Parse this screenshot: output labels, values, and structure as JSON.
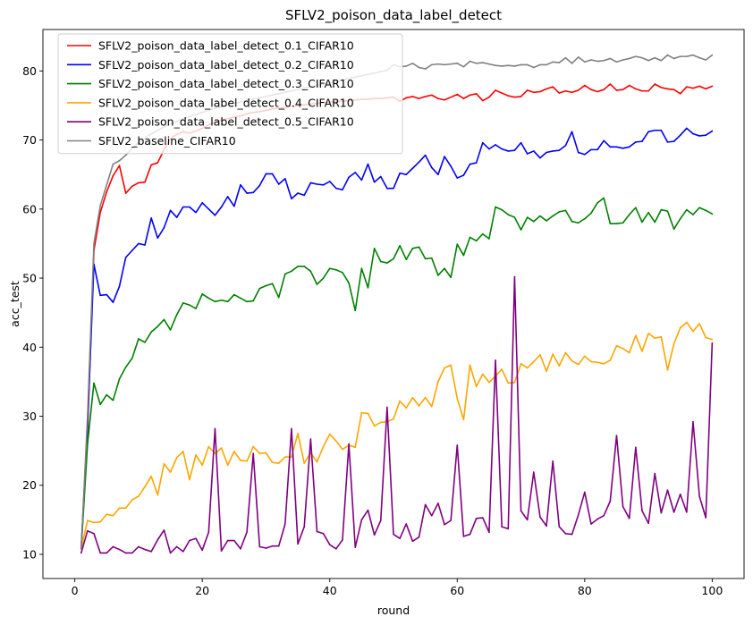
{
  "chart_data": {
    "type": "line",
    "title": "SFLV2_poison_data_label_detect",
    "xlabel": "round",
    "ylabel": "acc_test",
    "xlim": [
      -5,
      105
    ],
    "ylim": [
      6.5,
      86
    ],
    "xticks": [
      0,
      20,
      40,
      60,
      80,
      100
    ],
    "yticks": [
      10,
      20,
      30,
      40,
      50,
      60,
      70,
      80
    ],
    "grid": false,
    "legend_position": "top-left",
    "x": [
      1,
      2,
      3,
      4,
      5,
      6,
      7,
      8,
      9,
      10,
      11,
      12,
      13,
      14,
      15,
      16,
      17,
      18,
      19,
      20,
      21,
      22,
      23,
      24,
      25,
      26,
      27,
      28,
      29,
      30,
      31,
      32,
      33,
      34,
      35,
      36,
      37,
      38,
      39,
      40,
      41,
      42,
      43,
      44,
      45,
      46,
      47,
      48,
      49,
      50,
      51,
      52,
      53,
      54,
      55,
      56,
      57,
      58,
      59,
      60,
      61,
      62,
      63,
      64,
      65,
      66,
      67,
      68,
      69,
      70,
      71,
      72,
      73,
      74,
      75,
      76,
      77,
      78,
      79,
      80,
      81,
      82,
      83,
      84,
      85,
      86,
      87,
      88,
      89,
      90,
      91,
      92,
      93,
      94,
      95,
      96,
      97,
      98,
      99,
      100
    ],
    "series": [
      {
        "name": "SFLV2_poison_data_label_detect_0.1_CIFAR10",
        "color": "#ff0000",
        "values": [
          10.8,
          27.5,
          54.0,
          59.5,
          62.5,
          64.8,
          66.3,
          62.3,
          63.3,
          63.8,
          63.9,
          66.4,
          66.7,
          68.6,
          70.2,
          70.8,
          71.2,
          71.0,
          71.3,
          71.7,
          72.2,
          72.6,
          72.9,
          73.1,
          73.3,
          73.5,
          73.8,
          74.0,
          74.1,
          74.3,
          74.5,
          74.6,
          74.7,
          74.9,
          75.0,
          75.1,
          75.2,
          75.3,
          75.4,
          75.5,
          75.6,
          75.6,
          75.7,
          75.8,
          75.9,
          75.9,
          76.0,
          76.0,
          76.1,
          76.2,
          75.6,
          76.1,
          76.3,
          76.0,
          76.3,
          76.5,
          76.0,
          75.8,
          76.2,
          76.6,
          76.0,
          76.5,
          76.7,
          75.7,
          76.2,
          77.2,
          76.8,
          76.4,
          76.2,
          76.3,
          77.2,
          76.9,
          77.0,
          77.4,
          77.7,
          76.8,
          77.1,
          76.9,
          77.2,
          77.9,
          77.3,
          77.0,
          77.3,
          78.1,
          77.2,
          77.3,
          77.9,
          77.4,
          77.1,
          77.1,
          78.1,
          77.6,
          77.4,
          77.3,
          76.7,
          77.7,
          77.5,
          77.8,
          77.4,
          77.8
        ]
      },
      {
        "name": "SFLV2_poison_data_label_detect_0.2_CIFAR10",
        "color": "#0000ff",
        "values": [
          10.8,
          28.5,
          52.0,
          47.5,
          47.6,
          46.5,
          48.8,
          53.0,
          54.0,
          55.0,
          54.8,
          58.7,
          55.8,
          57.3,
          59.8,
          58.8,
          60.3,
          60.3,
          59.5,
          60.9,
          60.0,
          59.1,
          60.3,
          61.8,
          60.4,
          63.5,
          62.3,
          62.4,
          63.4,
          65.1,
          65.1,
          63.6,
          64.4,
          61.5,
          62.3,
          62.0,
          63.8,
          63.6,
          63.5,
          64.0,
          63.0,
          62.8,
          64.6,
          65.3,
          64.2,
          66.5,
          63.9,
          64.7,
          63.0,
          63.0,
          65.2,
          65.0,
          65.9,
          66.8,
          67.8,
          66.0,
          65.0,
          67.6,
          66.2,
          64.5,
          64.9,
          66.5,
          66.7,
          69.6,
          68.7,
          69.3,
          68.7,
          68.4,
          68.5,
          69.6,
          68.0,
          68.4,
          67.4,
          68.2,
          68.4,
          68.5,
          69.2,
          71.2,
          68.2,
          67.9,
          68.6,
          68.6,
          69.9,
          69.0,
          69.0,
          68.8,
          69.0,
          69.7,
          69.8,
          71.2,
          71.4,
          71.4,
          69.7,
          69.8,
          70.7,
          71.7,
          70.9,
          70.6,
          70.7,
          71.3
        ]
      },
      {
        "name": "SFLV2_poison_data_label_detect_0.3_CIFAR10",
        "color": "#008000",
        "values": [
          10.8,
          26.0,
          34.8,
          31.7,
          33.1,
          32.3,
          35.4,
          37.1,
          38.4,
          41.2,
          40.7,
          42.2,
          43.0,
          44.0,
          42.5,
          44.7,
          46.4,
          46.1,
          45.6,
          47.7,
          47.1,
          46.6,
          46.8,
          46.6,
          47.6,
          47.1,
          46.6,
          46.7,
          48.5,
          48.9,
          49.2,
          47.2,
          50.6,
          51.0,
          51.7,
          51.7,
          51.0,
          49.1,
          50.0,
          51.4,
          51.2,
          50.8,
          49.3,
          45.3,
          51.4,
          48.6,
          54.3,
          52.4,
          52.2,
          52.8,
          54.7,
          52.7,
          54.3,
          54.5,
          52.8,
          52.9,
          50.4,
          51.4,
          50.1,
          54.9,
          53.3,
          55.9,
          55.4,
          56.4,
          55.7,
          60.3,
          59.9,
          59.2,
          58.8,
          57.0,
          58.8,
          58.2,
          59.0,
          58.3,
          59.0,
          59.6,
          59.8,
          58.2,
          58.0,
          58.6,
          59.4,
          60.9,
          61.6,
          57.9,
          57.9,
          58.0,
          59.2,
          60.2,
          58.1,
          59.5,
          58.1,
          59.9,
          59.7,
          57.1,
          58.6,
          59.9,
          59.2,
          60.2,
          59.8,
          59.3
        ]
      },
      {
        "name": "SFLV2_poison_data_label_detect_0.4_CIFAR10",
        "color": "#ffa500",
        "values": [
          10.8,
          14.9,
          14.6,
          14.7,
          15.8,
          15.6,
          16.7,
          16.7,
          17.9,
          18.4,
          19.8,
          21.3,
          18.6,
          23.1,
          21.9,
          24.0,
          24.9,
          20.8,
          24.4,
          22.9,
          25.6,
          24.6,
          25.4,
          22.9,
          24.9,
          23.6,
          23.5,
          25.6,
          24.6,
          24.7,
          23.3,
          23.2,
          24.1,
          24.1,
          27.5,
          23.2,
          24.7,
          23.4,
          25.6,
          27.4,
          26.4,
          25.2,
          25.8,
          25.5,
          30.5,
          30.4,
          28.6,
          29.1,
          29.2,
          29.6,
          32.2,
          31.2,
          32.7,
          31.5,
          32.7,
          31.4,
          35.0,
          37.0,
          37.4,
          32.6,
          29.5,
          37.4,
          34.3,
          36.1,
          34.9,
          35.8,
          36.8,
          34.8,
          34.9,
          37.6,
          37.0,
          37.9,
          38.9,
          36.5,
          39.0,
          37.3,
          39.2,
          38.0,
          37.5,
          38.7,
          37.9,
          37.8,
          37.6,
          38.1,
          40.2,
          39.8,
          39.2,
          41.7,
          39.4,
          42.0,
          41.3,
          41.5,
          36.7,
          40.5,
          42.8,
          43.6,
          42.3,
          43.4,
          41.4,
          41.1
        ]
      },
      {
        "name": "SFLV2_poison_data_label_detect_0.5_CIFAR10",
        "color": "#800080",
        "values": [
          10.2,
          13.4,
          13.0,
          10.2,
          10.2,
          11.1,
          10.7,
          10.2,
          10.2,
          11.1,
          10.7,
          10.4,
          12.1,
          13.5,
          10.2,
          11.1,
          10.4,
          12.0,
          12.3,
          10.6,
          13.2,
          28.2,
          10.5,
          12.0,
          12.0,
          10.8,
          13.2,
          24.6,
          11.1,
          10.9,
          11.2,
          11.2,
          14.4,
          28.2,
          11.5,
          14.0,
          26.7,
          13.3,
          13.0,
          11.4,
          10.8,
          12.1,
          26.0,
          11.0,
          15.0,
          16.4,
          12.8,
          14.9,
          31.3,
          12.9,
          12.3,
          14.4,
          11.9,
          12.5,
          17.2,
          15.6,
          17.4,
          14.3,
          14.9,
          25.8,
          12.6,
          12.9,
          15.2,
          15.3,
          13.2,
          38.1,
          14.0,
          13.7,
          50.2,
          16.3,
          15.0,
          21.9,
          15.4,
          14.1,
          23.5,
          14.0,
          13.0,
          12.9,
          15.7,
          19.0,
          14.4,
          15.1,
          15.6,
          17.7,
          27.2,
          16.9,
          15.2,
          25.5,
          16.3,
          14.5,
          21.7,
          16.0,
          19.3,
          16.1,
          18.7,
          16.1,
          29.2,
          18.4,
          15.3,
          40.6
        ]
      },
      {
        "name": "SFLV2_baseline_CIFAR10",
        "color": "#808080",
        "values": [
          10.8,
          30.0,
          55.0,
          60.5,
          63.5,
          66.5,
          67.0,
          67.8,
          68.8,
          69.6,
          70.3,
          70.9,
          71.4,
          71.9,
          72.3,
          72.7,
          73.1,
          73.4,
          73.7,
          74.0,
          74.3,
          74.6,
          74.8,
          75.1,
          75.3,
          75.5,
          75.7,
          75.9,
          76.1,
          76.3,
          76.5,
          76.7,
          76.9,
          77.1,
          77.3,
          77.5,
          77.7,
          77.9,
          78.1,
          78.3,
          78.5,
          78.7,
          78.9,
          79.1,
          79.3,
          79.5,
          79.7,
          79.9,
          80.1,
          80.9,
          80.6,
          80.7,
          81.1,
          80.5,
          80.3,
          80.9,
          81.0,
          80.9,
          81.0,
          81.1,
          80.6,
          81.4,
          81.1,
          81.2,
          81.0,
          80.8,
          80.7,
          80.8,
          80.7,
          80.9,
          80.9,
          80.5,
          80.9,
          80.9,
          81.3,
          81.2,
          81.9,
          81.1,
          82.0,
          81.3,
          81.6,
          81.4,
          81.5,
          81.8,
          81.3,
          81.6,
          81.8,
          82.1,
          81.9,
          81.5,
          81.9,
          81.5,
          82.3,
          81.8,
          82.1,
          82.1,
          82.3,
          81.9,
          81.6,
          82.3
        ]
      }
    ]
  }
}
